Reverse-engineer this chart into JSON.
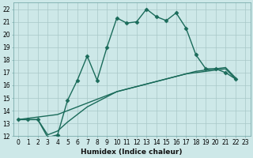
{
  "xlabel": "Humidex (Indice chaleur)",
  "ylabel": "",
  "background_color": "#cde8e8",
  "grid_color": "#a8c8c8",
  "line_color": "#1a6b5a",
  "xlim": [
    -0.5,
    23.5
  ],
  "ylim": [
    12,
    22.5
  ],
  "xticks": [
    0,
    1,
    2,
    3,
    4,
    5,
    6,
    7,
    8,
    9,
    10,
    11,
    12,
    13,
    14,
    15,
    16,
    17,
    18,
    19,
    20,
    21,
    22,
    23
  ],
  "yticks": [
    12,
    13,
    14,
    15,
    16,
    17,
    18,
    19,
    20,
    21,
    22
  ],
  "line1_x": [
    0,
    1,
    2,
    3,
    4,
    5,
    6,
    7,
    8,
    9,
    10,
    11,
    12,
    13,
    14,
    15,
    16,
    17,
    18,
    19,
    20,
    21,
    22
  ],
  "line1_y": [
    13.3,
    13.3,
    13.3,
    11.9,
    12.1,
    14.8,
    16.4,
    18.3,
    16.4,
    19.0,
    21.3,
    20.9,
    21.0,
    22.0,
    21.4,
    21.1,
    21.7,
    20.5,
    18.4,
    17.3,
    17.3,
    17.0,
    16.5
  ],
  "line2_x": [
    0,
    1,
    2,
    3,
    4,
    5,
    6,
    7,
    8,
    9,
    10,
    11,
    12,
    13,
    14,
    15,
    16,
    17,
    18,
    19,
    20,
    21,
    22
  ],
  "line2_y": [
    13.3,
    13.4,
    13.5,
    13.6,
    13.7,
    14.0,
    14.3,
    14.6,
    14.9,
    15.2,
    15.5,
    15.7,
    15.9,
    16.1,
    16.3,
    16.5,
    16.7,
    16.9,
    17.1,
    17.2,
    17.3,
    17.4,
    16.6
  ],
  "line3_x": [
    0,
    1,
    2,
    3,
    4,
    5,
    6,
    7,
    8,
    9,
    10,
    11,
    12,
    13,
    14,
    15,
    16,
    17,
    18,
    19,
    20,
    21,
    22
  ],
  "line3_y": [
    13.3,
    13.3,
    13.3,
    12.1,
    12.4,
    13.1,
    13.7,
    14.3,
    14.7,
    15.1,
    15.5,
    15.7,
    15.9,
    16.1,
    16.3,
    16.5,
    16.7,
    16.9,
    17.0,
    17.1,
    17.2,
    17.3,
    16.5
  ],
  "marker": "D",
  "markersize": 2.5,
  "linewidth": 1.0
}
